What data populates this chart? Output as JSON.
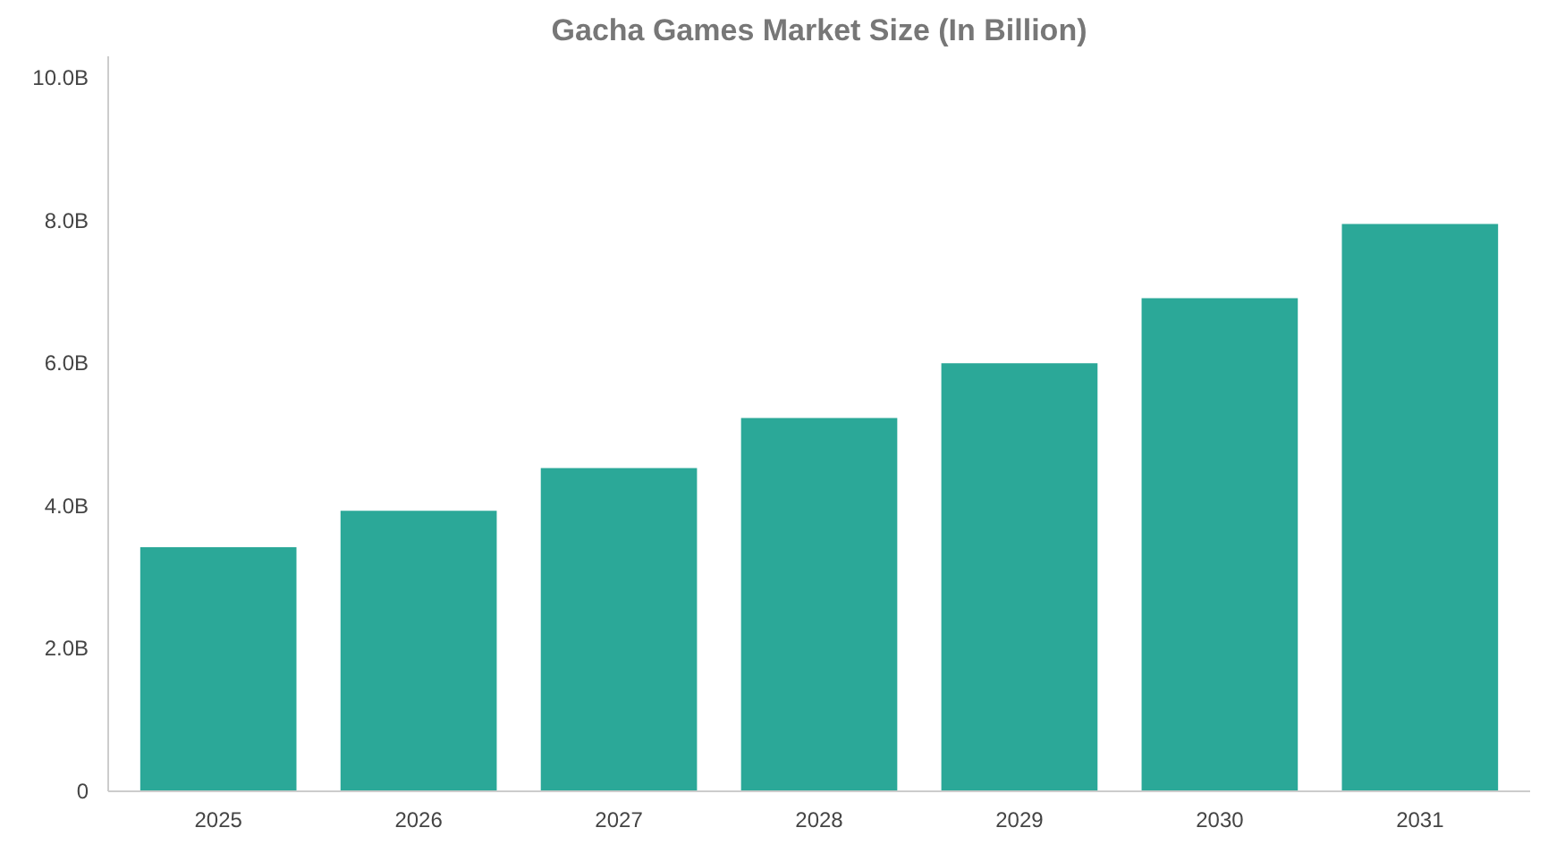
{
  "chart_data": {
    "type": "bar",
    "title": "Gacha Games Market Size (In Billion)",
    "categories": [
      "2025",
      "2026",
      "2027",
      "2028",
      "2029",
      "2030",
      "2031"
    ],
    "values": [
      3.42,
      3.93,
      4.53,
      5.23,
      6.0,
      6.91,
      7.95
    ],
    "color": "#2ba898",
    "ylim": [
      0,
      10.3
    ],
    "yticks": [
      0,
      {
        "value": 2,
        "label": "2.0B"
      },
      {
        "value": 4,
        "label": "4.0B"
      },
      {
        "value": 6,
        "label": "6.0B"
      },
      {
        "value": 8,
        "label": "8.0B"
      },
      {
        "value": 10,
        "label": "10.0B"
      }
    ],
    "grid": false
  }
}
